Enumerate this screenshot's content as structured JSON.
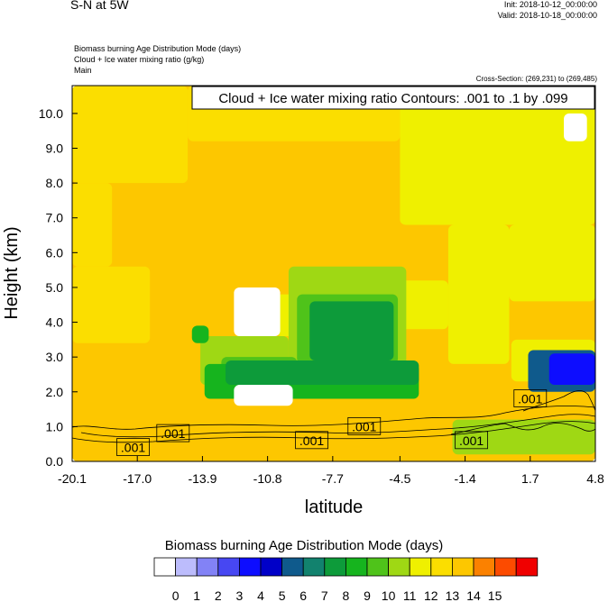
{
  "header": {
    "title": "S-N at 5W",
    "init": "Init: 2018-10-12_00:00:00",
    "valid": "Valid: 2018-10-18_00:00:00",
    "field1": "Biomass burning Age Distribution Mode   (days)",
    "field2": "Cloud + Ice water mixing ratio   (g/kg)",
    "field3": "Main",
    "cross_section": "Cross-Section: (269,231) to (269,485)"
  },
  "chart_data": {
    "type": "heatmap",
    "title": "Cloud + Ice water mixing ratio Contours: .001 to .1 by .099",
    "xlabel": "latitude",
    "ylabel": "Height (km)",
    "xlim": [
      -20.1,
      4.8
    ],
    "ylim": [
      0,
      10.8
    ],
    "xticks": [
      "-20.1",
      "-17.0",
      "-13.9",
      "-10.8",
      "-7.7",
      "-4.5",
      "-1.4",
      "1.7",
      "4.8"
    ],
    "yticks": [
      "0.0",
      "1.0",
      "2.0",
      "3.0",
      "4.0",
      "5.0",
      "6.0",
      "7.0",
      "8.0",
      "9.0",
      "10.0"
    ],
    "colorbar": {
      "title": "Biomass burning Age Distribution Mode  (days)",
      "labels": [
        "0",
        "1",
        "2",
        "3",
        "4",
        "5",
        "6",
        "7",
        "8",
        "9",
        "10",
        "11",
        "12",
        "13",
        "14",
        "15"
      ],
      "colors": [
        "#ffffff",
        "#bcbcfc",
        "#8282f6",
        "#4747f2",
        "#0d0dff",
        "#0000c8",
        "#0f5a8c",
        "#12826e",
        "#0d9b3a",
        "#16b41e",
        "#4fc31a",
        "#9fd814",
        "#eff000",
        "#fbde00",
        "#fdc700",
        "#fb8100",
        "#fc4b00",
        "#f00000"
      ]
    },
    "contour_labels": [
      ".001",
      ".001",
      ".001",
      ".001",
      ".001",
      ".001"
    ],
    "regions": [
      {
        "level": 14,
        "x": [
          -20.1,
          4.8
        ],
        "y": [
          0,
          10.8
        ]
      },
      {
        "level": 13,
        "x": [
          -20.1,
          -14.6
        ],
        "y": [
          8.0,
          10.8
        ]
      },
      {
        "level": 13,
        "x": [
          -14.6,
          -4.5
        ],
        "y": [
          9.2,
          10.8
        ]
      },
      {
        "level": 13,
        "x": [
          -20.1,
          -16.4
        ],
        "y": [
          3.4,
          5.6
        ]
      },
      {
        "level": 13,
        "x": [
          -20.1,
          -18.2
        ],
        "y": [
          5.6,
          8.0
        ]
      },
      {
        "level": 12,
        "x": [
          -4.5,
          4.8
        ],
        "y": [
          6.8,
          10.8
        ]
      },
      {
        "level": 12,
        "x": [
          -2.2,
          0.7
        ],
        "y": [
          2.8,
          6.8
        ]
      },
      {
        "level": 12,
        "x": [
          0.7,
          4.8
        ],
        "y": [
          4.6,
          6.8
        ]
      },
      {
        "level": 12,
        "x": [
          -5.0,
          -2.2
        ],
        "y": [
          3.8,
          5.2
        ]
      },
      {
        "level": 12,
        "x": [
          -10.4,
          -7.6
        ],
        "y": [
          3.6,
          4.8
        ]
      },
      {
        "level": 11,
        "x": [
          -9.8,
          -4.2
        ],
        "y": [
          2.6,
          5.6
        ]
      },
      {
        "level": 11,
        "x": [
          -14.0,
          -9.8
        ],
        "y": [
          2.2,
          3.6
        ]
      },
      {
        "level": 10,
        "x": [
          -9.4,
          -4.6
        ],
        "y": [
          2.8,
          4.8
        ]
      },
      {
        "level": 10,
        "x": [
          -13.0,
          -9.4
        ],
        "y": [
          2.4,
          3.0
        ]
      },
      {
        "level": 9,
        "x": [
          -13.8,
          -3.6
        ],
        "y": [
          1.8,
          2.8
        ]
      },
      {
        "level": 9,
        "x": [
          -14.4,
          -13.6
        ],
        "y": [
          3.4,
          3.9
        ]
      },
      {
        "level": 8,
        "x": [
          -8.8,
          -4.8
        ],
        "y": [
          2.9,
          4.6
        ]
      },
      {
        "level": 8,
        "x": [
          -12.8,
          -3.6
        ],
        "y": [
          2.2,
          2.9
        ]
      },
      {
        "level": 11,
        "x": [
          -2.0,
          4.8
        ],
        "y": [
          0.2,
          1.2
        ]
      },
      {
        "level": 12,
        "x": [
          0.8,
          4.8
        ],
        "y": [
          2.3,
          3.5
        ]
      },
      {
        "level": 6,
        "x": [
          1.6,
          4.8
        ],
        "y": [
          2.0,
          3.2
        ]
      },
      {
        "level": 4,
        "x": [
          2.6,
          4.8
        ],
        "y": [
          2.2,
          3.1
        ]
      },
      {
        "level": 0,
        "x": [
          -12.4,
          -10.2
        ],
        "y": [
          3.6,
          5.0
        ]
      },
      {
        "level": 0,
        "x": [
          -12.4,
          -9.6
        ],
        "y": [
          1.6,
          2.2
        ]
      },
      {
        "level": 0,
        "x": [
          3.3,
          4.4
        ],
        "y": [
          9.2,
          10.0
        ]
      }
    ]
  }
}
